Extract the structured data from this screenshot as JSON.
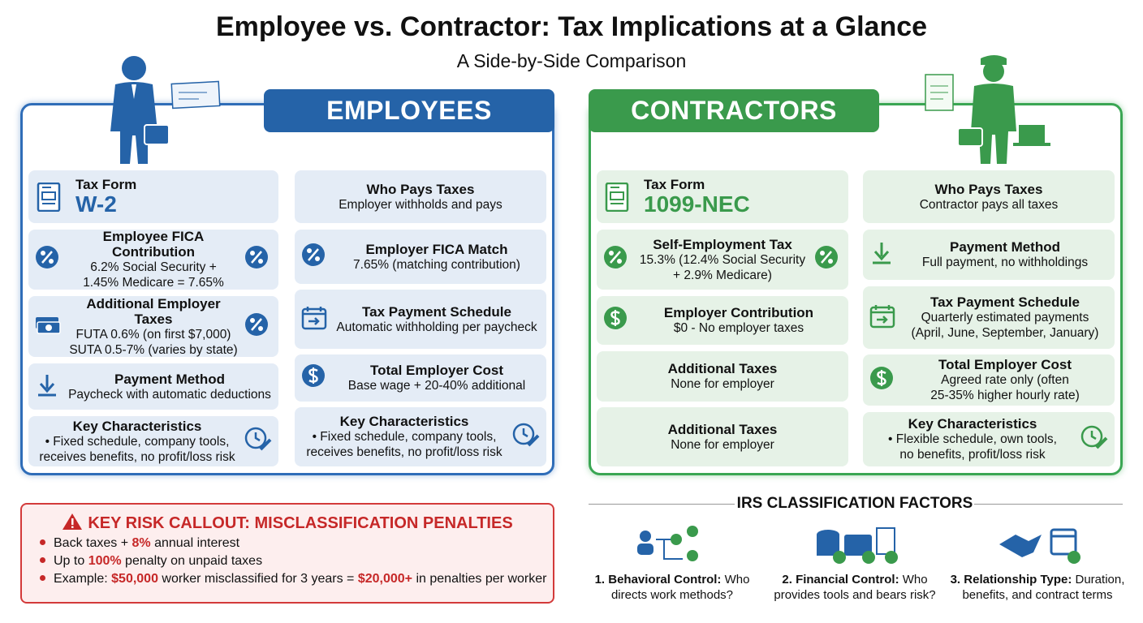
{
  "header": {
    "title": "Employee vs. Contractor: Tax Implications at a Glance",
    "subtitle": "A Side-by-Side Comparison"
  },
  "employees": {
    "heading": "EMPLOYEES",
    "left": [
      {
        "title": "Tax Form",
        "big": "W-2"
      },
      {
        "title": "Employee FICA Contribution",
        "lines": [
          "6.2% Social Security +",
          "1.45% Medicare = 7.65%"
        ]
      },
      {
        "title": "Additional Employer Taxes",
        "lines": [
          "FUTA 0.6% (on first $7,000)",
          "SUTA 0.5-7% (varies by state)"
        ]
      },
      {
        "title": "Payment Method",
        "lines": [
          "Paycheck with automatic deductions"
        ]
      },
      {
        "title": "Key Characteristics",
        "lines": [
          "• Fixed schedule, company tools,",
          "receives benefits, no profit/loss risk"
        ]
      }
    ],
    "right": [
      {
        "title": "Who Pays Taxes",
        "lines": [
          "Employer withholds and pays"
        ]
      },
      {
        "title": "Employer FICA Match",
        "lines": [
          "7.65% (matching contribution)"
        ]
      },
      {
        "title": "Tax Payment Schedule",
        "lines": [
          "Automatic withholding per paycheck"
        ]
      },
      {
        "title": "Total Employer Cost",
        "lines": [
          "Base wage + 20-40% additional"
        ]
      },
      {
        "title": "Key Characteristics",
        "lines": [
          "• Fixed schedule, company tools,",
          "receives benefits, no profit/loss risk"
        ]
      }
    ]
  },
  "contractors": {
    "heading": "CONTRACTORS",
    "left": [
      {
        "title": "Tax Form",
        "big": "1099-NEC"
      },
      {
        "title": "Self-Employment Tax",
        "lines": [
          "15.3% (12.4% Social Security",
          "+ 2.9% Medicare)"
        ]
      },
      {
        "title": "Employer Contribution",
        "lines": [
          "$0 - No employer taxes"
        ]
      },
      {
        "title": "Additional Taxes",
        "lines": [
          "None for employer"
        ]
      },
      {
        "title": "Additional Taxes",
        "lines": [
          "None for employer"
        ]
      }
    ],
    "right": [
      {
        "title": "Who Pays Taxes",
        "lines": [
          "Contractor pays all taxes"
        ]
      },
      {
        "title": "Payment Method",
        "lines": [
          "Full payment, no withholdings"
        ]
      },
      {
        "title": "Tax Payment Schedule",
        "lines": [
          "Quarterly estimated payments",
          "(April, June, September, January)"
        ]
      },
      {
        "title": "Total Employer Cost",
        "lines": [
          "Agreed rate only (often",
          "25-35% higher hourly rate)"
        ]
      },
      {
        "title": "Key Characteristics",
        "lines": [
          "• Flexible schedule, own tools,",
          "no benefits, profit/loss risk"
        ]
      }
    ]
  },
  "risk": {
    "heading": "KEY RISK CALLOUT: MISCLASSIFICATION PENALTIES",
    "items": [
      [
        "Back taxes + ",
        "8%",
        " annual interest"
      ],
      [
        "Up to ",
        "100%",
        " penalty on unpaid taxes"
      ],
      [
        "Example: ",
        "$50,000",
        " worker misclassified for 3 years = ",
        "$20,000+",
        " in penalties per worker"
      ]
    ]
  },
  "irs": {
    "title": "IRS CLASSIFICATION FACTORS",
    "factors": [
      {
        "label": "1. Behavioral Control:",
        "text": " Who directs work methods?"
      },
      {
        "label": "2. Financial Control:",
        "text": " Who provides tools and bears risk?"
      },
      {
        "label": "3. Relationship Type:",
        "text": " Duration, benefits, and contract terms"
      }
    ]
  }
}
